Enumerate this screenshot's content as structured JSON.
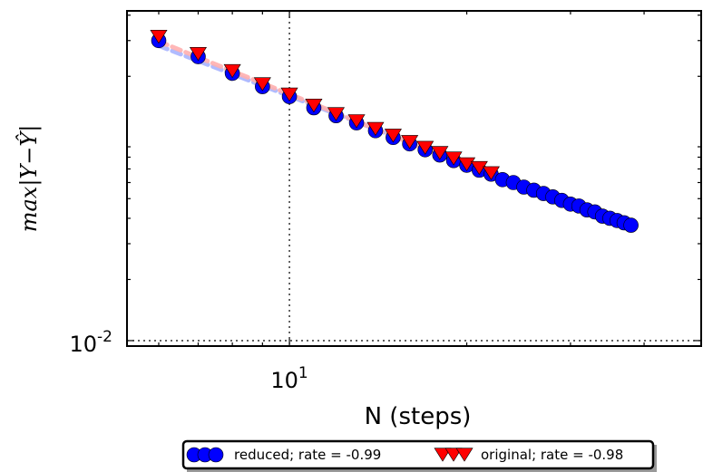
{
  "chart_data": {
    "type": "scatter",
    "xlabel": "N (steps)",
    "ylabel": "max|Y−Ŷ|",
    "xscale": "log",
    "yscale": "log",
    "xlim": [
      5.3,
      50
    ],
    "ylim": [
      0.0094,
      0.42
    ],
    "xticks": [
      {
        "value": 10,
        "base": "10",
        "exp": "1"
      }
    ],
    "yticks": [
      {
        "value": 0.01,
        "base": "10",
        "exp": "-2"
      }
    ],
    "reference_lines": {
      "x": 10,
      "y": 0.01,
      "style": "dotted"
    },
    "grid": false,
    "legend": {
      "placement": "bottom-center",
      "outside": true
    },
    "series": [
      {
        "name": "reduced; rate = -0.99",
        "marker": "circle",
        "color": "#0000ff",
        "fit_color": "#a8b4ff",
        "x": [
          6,
          7,
          8,
          9,
          10,
          11,
          12,
          13,
          14,
          15,
          16,
          17,
          18,
          19,
          20,
          21,
          22,
          23,
          24,
          25,
          26,
          27,
          28,
          29,
          30,
          31,
          32,
          33,
          34,
          35,
          36,
          37,
          38
        ],
        "y": [
          0.3,
          0.25,
          0.207,
          0.178,
          0.159,
          0.14,
          0.128,
          0.118,
          0.108,
          0.1,
          0.093,
          0.087,
          0.082,
          0.077,
          0.073,
          0.069,
          0.066,
          0.062,
          0.06,
          0.057,
          0.055,
          0.053,
          0.051,
          0.049,
          0.047,
          0.046,
          0.044,
          0.043,
          0.041,
          0.04,
          0.039,
          0.038,
          0.037
        ]
      },
      {
        "name": "original; rate = -0.98",
        "marker": "triangle-down",
        "color": "#ff0000",
        "fit_color": "#ffb0b0",
        "x": [
          6,
          7,
          8,
          9,
          10,
          11,
          12,
          13,
          14,
          15,
          16,
          17,
          18,
          19,
          20,
          21,
          22
        ],
        "y": [
          0.31,
          0.255,
          0.21,
          0.181,
          0.161,
          0.142,
          0.129,
          0.119,
          0.109,
          0.101,
          0.094,
          0.088,
          0.083,
          0.078,
          0.073,
          0.07,
          0.066
        ]
      }
    ]
  }
}
